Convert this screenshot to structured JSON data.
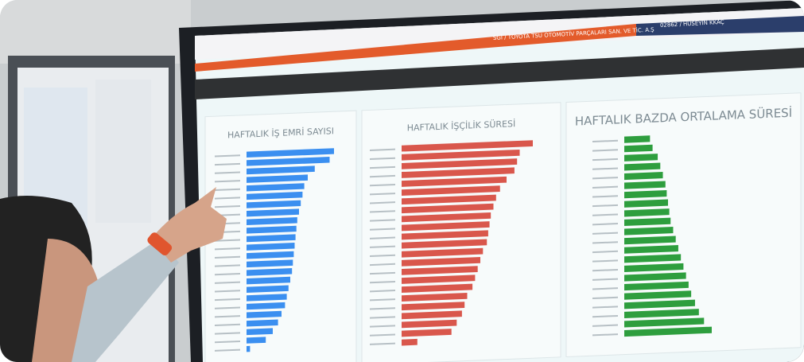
{
  "header": {
    "company": "SGİ / TOYOTA TSU OTOMOTİV PARÇALARI SAN. VE TİC. A.Ş",
    "user": "02862 / HÜSEYİN KKAÇ"
  },
  "charts": [
    {
      "title": "HAFTALIK İŞ EMRİ SAYISI",
      "color": "#3b8ff0",
      "values": [
        100,
        95,
        78,
        70,
        66,
        64,
        62,
        60,
        58,
        57,
        56,
        55,
        54,
        53,
        52,
        50,
        48,
        46,
        44,
        40,
        36,
        30,
        22,
        4
      ]
    },
    {
      "title": "HAFTALIK İŞÇİLİK SÜRESİ",
      "color": "#d9574c",
      "values": [
        100,
        90,
        88,
        86,
        80,
        75,
        72,
        70,
        68,
        67,
        66,
        65,
        62,
        60,
        58,
        56,
        54,
        50,
        48,
        46,
        42,
        38,
        12
      ]
    },
    {
      "title": "HAFTALIK BAZDA ORTALAMA SÜRESİ",
      "color": "#2e9e3e",
      "values": [
        20,
        22,
        26,
        28,
        30,
        32,
        33,
        34,
        35,
        36,
        38,
        40,
        42,
        44,
        46,
        48,
        50,
        52,
        55,
        58,
        62,
        68
      ]
    }
  ]
}
